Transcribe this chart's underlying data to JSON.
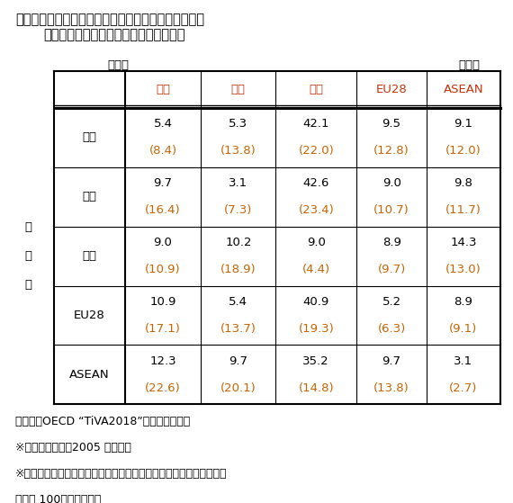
{
  "title_line1": "表２　輸入品に占める付加価値の原産国シェア（２）",
  "title_line2": "＜コンピュータ・電子機器・光学機器＞",
  "label_gensankoku": "原産国",
  "label_percent": "（％）",
  "col_headers": [
    "米国",
    "日本",
    "中国",
    "EU28",
    "ASEAN"
  ],
  "row_headers": [
    "米国",
    "日本",
    "中国",
    "EU28",
    "ASEAN"
  ],
  "main_values": [
    [
      "5.4",
      "5.3",
      "42.1",
      "9.5",
      "9.1"
    ],
    [
      "9.7",
      "3.1",
      "42.6",
      "9.0",
      "9.8"
    ],
    [
      "9.0",
      "10.2",
      "9.0",
      "8.9",
      "14.3"
    ],
    [
      "10.9",
      "5.4",
      "40.9",
      "5.2",
      "8.9"
    ],
    [
      "12.3",
      "9.7",
      "35.2",
      "9.7",
      "3.1"
    ]
  ],
  "paren_values": [
    [
      "(8.4)",
      "(13.8)",
      "(22.0)",
      "(12.8)",
      "(12.0)"
    ],
    [
      "(16.4)",
      "(7.3)",
      "(23.4)",
      "(10.7)",
      "(11.7)"
    ],
    [
      "(10.9)",
      "(18.9)",
      "(4.4)",
      "(9.7)",
      "(13.0)"
    ],
    [
      "(17.1)",
      "(13.7)",
      "(19.3)",
      "(6.3)",
      "(9.1)"
    ],
    [
      "(22.6)",
      "(20.1)",
      "(14.8)",
      "(13.8)",
      "(2.7)"
    ]
  ],
  "main_color": "#000000",
  "paren_color": "#c86400",
  "header_color": "#c8320a",
  "note1": "（資料）OECD “TiVA2018”より筆者作成。",
  "note2": "※　（　）内は、2005 年の数値",
  "note3": "※　表１、２とも横軸には含まれていない国があるため必ずしも合計",
  "note4": "　　は 100％にならない",
  "bg_color": "#ffffff",
  "font_size_title": 10.5,
  "font_size_table": 9.5,
  "font_size_note": 9.0
}
